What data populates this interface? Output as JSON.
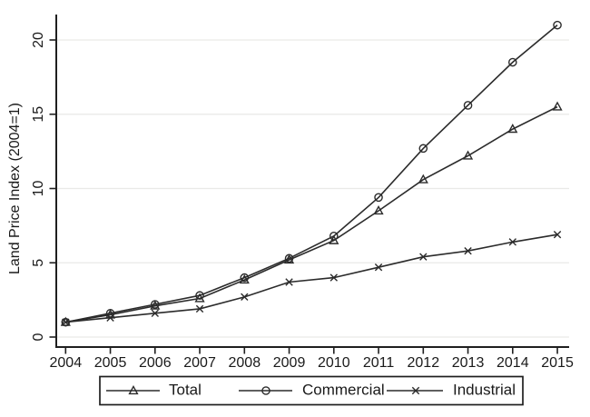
{
  "chart_data": {
    "type": "line",
    "title": "",
    "xlabel": "",
    "ylabel": "Land Price Index (2004=1)",
    "x": [
      2004,
      2005,
      2006,
      2007,
      2008,
      2009,
      2010,
      2011,
      2012,
      2013,
      2014,
      2015
    ],
    "yticks": [
      0,
      5,
      10,
      15,
      20
    ],
    "ylim": [
      0,
      21.8
    ],
    "grid": "horizontal",
    "legend_position": "bottom-outside-boxed",
    "series": [
      {
        "name": "Total",
        "marker": "triangle",
        "values": [
          1.0,
          1.5,
          2.1,
          2.6,
          3.85,
          5.2,
          6.5,
          8.5,
          10.6,
          12.2,
          14.0,
          15.5
        ]
      },
      {
        "name": "Commercial",
        "marker": "circle",
        "values": [
          1.0,
          1.6,
          2.2,
          2.8,
          4.0,
          5.3,
          6.8,
          9.4,
          12.7,
          15.6,
          18.5,
          21.0
        ]
      },
      {
        "name": "Industrial",
        "marker": "x",
        "values": [
          1.0,
          1.3,
          1.6,
          1.9,
          2.7,
          3.7,
          4.0,
          4.7,
          5.4,
          5.8,
          6.4,
          6.9
        ]
      }
    ],
    "colors": {
      "line": "#2b2b2b",
      "axis": "#1f1f1f",
      "grid": "#e9e9e7",
      "text": "#1a1a1a",
      "background": "#ffffff"
    }
  }
}
